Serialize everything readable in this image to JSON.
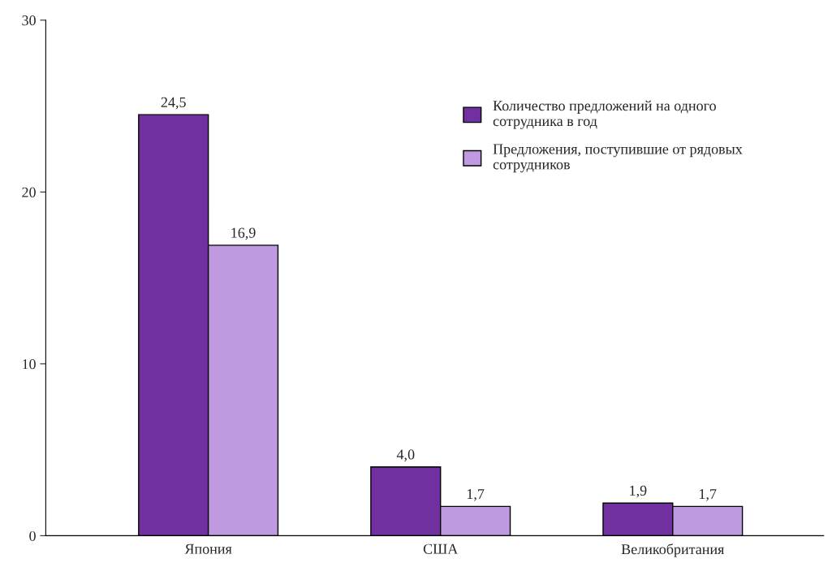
{
  "chart_data": {
    "type": "bar",
    "categories": [
      "Япония",
      "США",
      "Великобритания"
    ],
    "series": [
      {
        "name": "Количество предложений на одного\nсотрудника в год",
        "color": "#7030a0",
        "values": [
          24.5,
          4.0,
          1.9
        ],
        "value_labels": [
          "24,5",
          "4,0",
          "1,9"
        ]
      },
      {
        "name": "Предложения, поступившие от рядовых\nсотрудников",
        "color": "#c09ae0",
        "values": [
          16.9,
          1.7,
          1.7
        ],
        "value_labels": [
          "16,9",
          "1,7",
          "1,7"
        ]
      }
    ],
    "ylim": [
      0,
      30
    ],
    "yticks": [
      0,
      10,
      20,
      30
    ],
    "grid": false,
    "legend": "top right"
  }
}
